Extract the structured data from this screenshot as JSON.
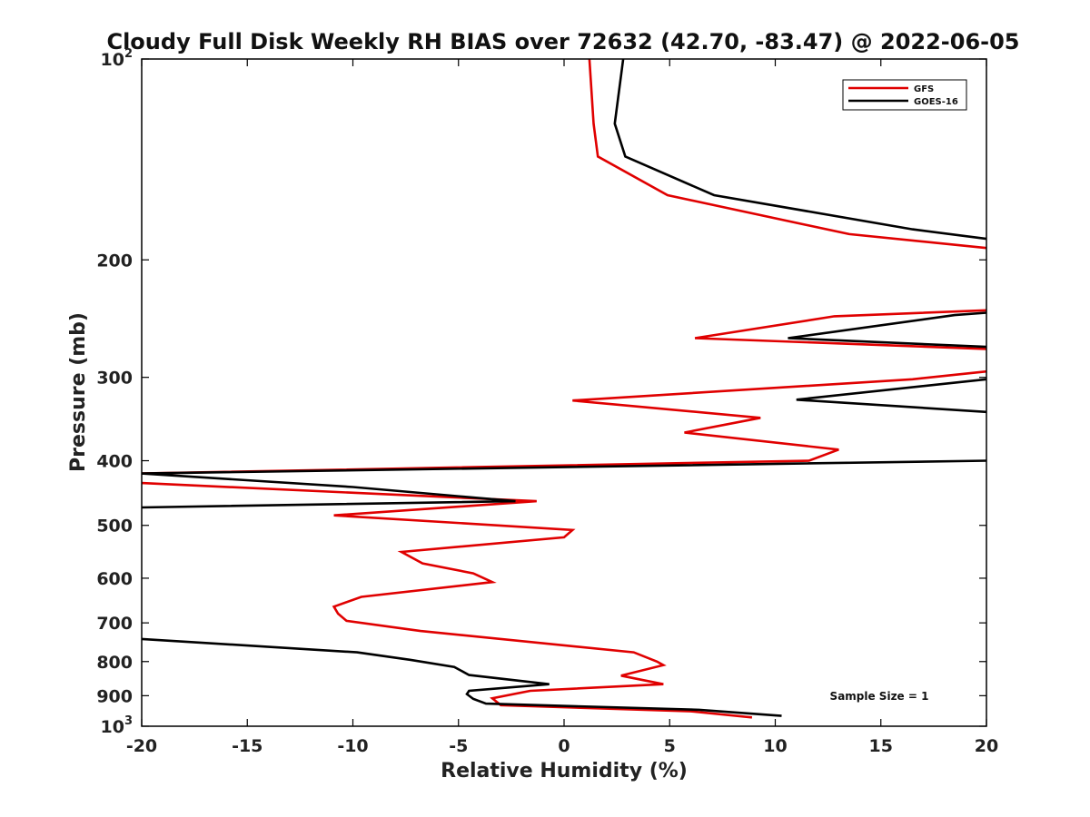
{
  "chart_data": {
    "type": "line",
    "title": "Cloudy Full Disk Weekly RH BIAS over 72632 (42.70, -83.47) @ 2022-06-05",
    "xlabel": "Relative Humidity (%)",
    "ylabel": "Pressure (mb)",
    "xlim": [
      -20,
      20
    ],
    "ylim": [
      100,
      1000
    ],
    "y_scale": "log",
    "y_reversed": true,
    "grid": false,
    "legend_position": "top-right",
    "x_ticks": [
      -20,
      -15,
      -10,
      -5,
      0,
      5,
      10,
      15,
      20
    ],
    "x_tick_labels": [
      "-20",
      "-15",
      "-10",
      "-5",
      "0",
      "5",
      "10",
      "15",
      "20"
    ],
    "y_ticks": [
      100,
      200,
      300,
      400,
      500,
      600,
      700,
      800,
      900,
      1000
    ],
    "y_tick_labels": [
      {
        "base": "10",
        "exp": "2"
      },
      {
        "base": "200",
        "exp": ""
      },
      {
        "base": "300",
        "exp": ""
      },
      {
        "base": "400",
        "exp": ""
      },
      {
        "base": "500",
        "exp": ""
      },
      {
        "base": "600",
        "exp": ""
      },
      {
        "base": "700",
        "exp": ""
      },
      {
        "base": "800",
        "exp": ""
      },
      {
        "base": "900",
        "exp": ""
      },
      {
        "base": "10",
        "exp": "3"
      }
    ],
    "annotation": "Sample Size = 1",
    "series": [
      {
        "name": "GFS",
        "color": "#e00000",
        "points": [
          [
            1.2,
            100
          ],
          [
            1.4,
            125
          ],
          [
            1.6,
            140
          ],
          [
            4.9,
            160
          ],
          [
            13.5,
            183
          ],
          [
            20,
            192
          ],
          null,
          [
            20,
            238
          ],
          [
            12.8,
            243
          ],
          [
            6.2,
            262
          ],
          [
            20,
            272
          ],
          null,
          [
            20,
            294
          ],
          [
            16.5,
            302
          ],
          [
            0.4,
            325
          ],
          [
            9.3,
            345
          ],
          [
            5.7,
            363
          ],
          [
            13.0,
            385
          ],
          [
            11.6,
            400
          ],
          [
            -20,
            418
          ],
          null,
          [
            -20,
            432
          ],
          [
            -1.3,
            460
          ],
          [
            -10.9,
            483
          ],
          [
            0.4,
            508
          ],
          [
            0.0,
            521
          ],
          [
            -7.7,
            548
          ],
          [
            -6.7,
            570
          ],
          [
            -4.3,
            590
          ],
          [
            -3.4,
            608
          ],
          [
            -9.6,
            640
          ],
          [
            -10.9,
            662
          ],
          [
            -10.7,
            678
          ],
          [
            -10.3,
            695
          ],
          [
            -6.8,
            720
          ],
          [
            3.3,
            775
          ],
          [
            4.4,
            800
          ],
          [
            4.7,
            810
          ],
          [
            2.7,
            840
          ],
          [
            4.7,
            865
          ],
          [
            -1.6,
            885
          ],
          [
            -3.4,
            908
          ],
          [
            -3.0,
            930
          ],
          [
            6.0,
            950
          ],
          [
            8.9,
            970
          ]
        ]
      },
      {
        "name": "GOES-16",
        "color": "#000000",
        "points": [
          [
            2.8,
            100
          ],
          [
            2.4,
            125
          ],
          [
            2.9,
            140
          ],
          [
            7.1,
            160
          ],
          [
            16.5,
            180
          ],
          [
            20,
            186
          ],
          null,
          [
            20,
            240
          ],
          [
            18.5,
            242
          ],
          [
            10.6,
            262
          ],
          [
            20,
            270
          ],
          null,
          [
            20,
            302
          ],
          [
            11.0,
            324
          ],
          [
            20,
            338
          ],
          null,
          [
            20,
            400
          ],
          [
            -20,
            418
          ],
          null,
          [
            -20,
            418
          ],
          [
            -10.0,
            438
          ],
          [
            -2.3,
            460
          ],
          [
            -20,
            470
          ],
          null,
          [
            -20,
            740
          ],
          [
            -9.8,
            775
          ],
          [
            -7.3,
            795
          ],
          [
            -5.2,
            815
          ],
          [
            -4.5,
            838
          ],
          [
            -0.7,
            865
          ],
          [
            -4.5,
            885
          ],
          [
            -4.6,
            895
          ],
          [
            -4.3,
            910
          ],
          [
            -3.7,
            925
          ],
          [
            6.4,
            945
          ],
          [
            10.3,
            965
          ]
        ]
      }
    ]
  }
}
